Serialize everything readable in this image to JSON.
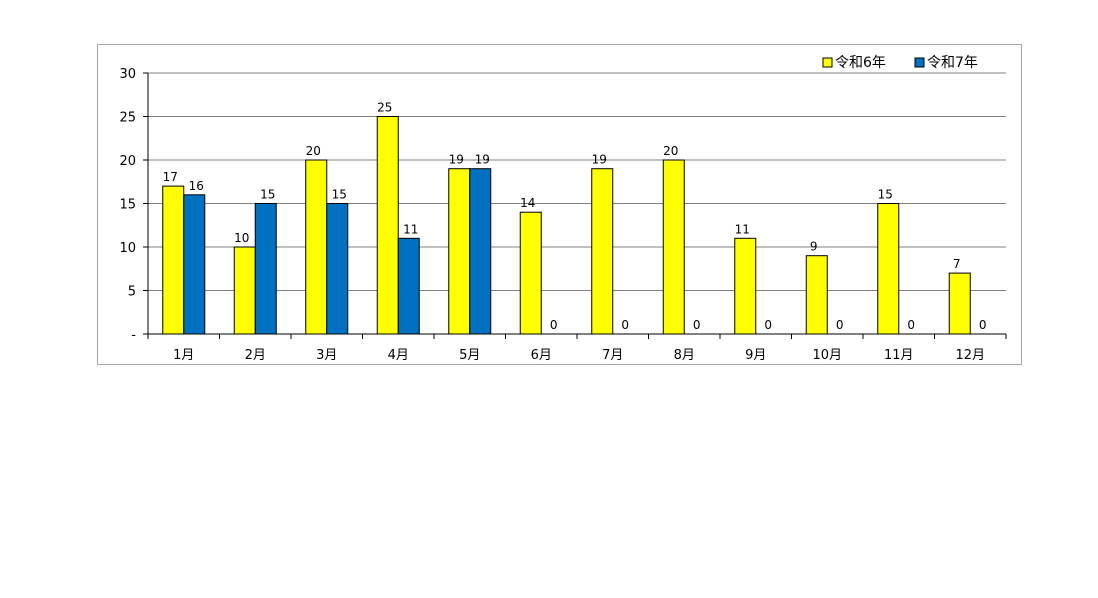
{
  "chart_data": {
    "type": "bar",
    "categories": [
      "1月",
      "2月",
      "3月",
      "4月",
      "5月",
      "6月",
      "7月",
      "8月",
      "9月",
      "10月",
      "11月",
      "12月"
    ],
    "series": [
      {
        "name": "令和6年",
        "color": "#ffff00",
        "values": [
          17,
          10,
          20,
          25,
          19,
          14,
          19,
          20,
          11,
          9,
          15,
          7
        ]
      },
      {
        "name": "令和7年",
        "color": "#0070c0",
        "values": [
          16,
          15,
          15,
          11,
          19,
          0,
          0,
          0,
          0,
          0,
          0,
          0
        ]
      }
    ],
    "y_ticks": [
      {
        "value": 0,
        "label": "-"
      },
      {
        "value": 5,
        "label": "5"
      },
      {
        "value": 10,
        "label": "10"
      },
      {
        "value": 15,
        "label": "15"
      },
      {
        "value": 20,
        "label": "20"
      },
      {
        "value": 25,
        "label": "25"
      },
      {
        "value": 30,
        "label": "30"
      }
    ],
    "ylim": [
      0,
      30
    ],
    "grid": true,
    "legend": "top-right",
    "data_labels": true
  }
}
